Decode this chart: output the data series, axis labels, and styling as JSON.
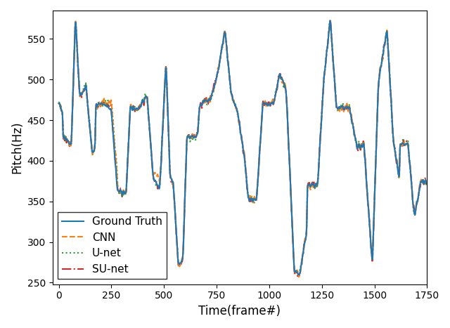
{
  "title": "",
  "xlabel": "Time(frame#)",
  "ylabel": "Pitch(Hz)",
  "xlim": [
    -30,
    1750
  ],
  "ylim": [
    248,
    585
  ],
  "yticks": [
    250,
    300,
    350,
    400,
    450,
    500,
    550
  ],
  "xticks": [
    0,
    250,
    500,
    750,
    1000,
    1250,
    1500,
    1750
  ],
  "gt_color": "#1f77b4",
  "cnn_color": "#ff7f0e",
  "unet_color": "#2ca02c",
  "sunet_color": "#d62728",
  "gt_lw": 1.5,
  "cnn_lw": 1.5,
  "unet_lw": 1.5,
  "sunet_lw": 1.5,
  "legend_loc": "lower left",
  "figsize": [
    6.4,
    4.67
  ],
  "dpi": 100
}
